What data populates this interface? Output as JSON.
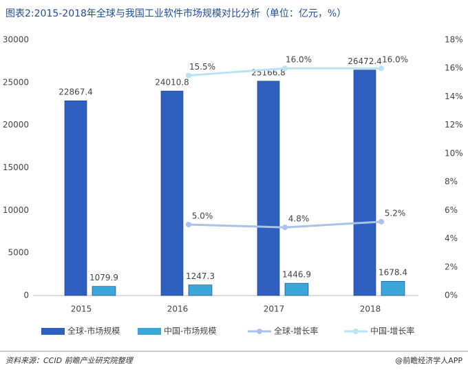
{
  "chart_data": {
    "type": "bar",
    "title": "图表2:2015-2018年全球与我国工业软件市场规模对比分析（单位：亿元，%）",
    "categories": [
      "2015",
      "2016",
      "2017",
      "2018"
    ],
    "series": [
      {
        "name": "全球-市场规模",
        "type": "bar",
        "color": "#2f5fbf",
        "values": [
          22867.4,
          24010.8,
          25166.8,
          26472.4
        ]
      },
      {
        "name": "中国-市场规模",
        "type": "bar",
        "color": "#3ba6d8",
        "values": [
          1079.9,
          1247.3,
          1446.9,
          1678.4
        ]
      },
      {
        "name": "全球-增长率",
        "type": "line",
        "axis": "y2",
        "color": "#a8c3ea",
        "values": [
          null,
          5.0,
          4.8,
          5.2
        ],
        "value_labels": [
          null,
          "5.0%",
          "4.8%",
          "5.2%"
        ]
      },
      {
        "name": "中国-增长率",
        "type": "line",
        "axis": "y2",
        "color": "#b9e2f6",
        "values": [
          null,
          15.5,
          16.0,
          16.0
        ],
        "value_labels": [
          null,
          "15.5%",
          "16.0%",
          "16.0%"
        ]
      }
    ],
    "ylim": [
      0,
      30000
    ],
    "yticks": [
      0,
      5000,
      10000,
      15000,
      20000,
      25000,
      30000
    ],
    "y2lim": [
      0,
      18
    ],
    "y2ticks": [
      {
        "value": 0,
        "label": "0%"
      },
      {
        "value": 2,
        "label": "2%"
      },
      {
        "value": 4,
        "label": "4%"
      },
      {
        "value": 6,
        "label": "6%"
      },
      {
        "value": 8,
        "label": "8%"
      },
      {
        "value": 10,
        "label": "10%"
      },
      {
        "value": 12,
        "label": "12%"
      },
      {
        "value": 14,
        "label": "14%"
      },
      {
        "value": 16,
        "label": "16%"
      },
      {
        "value": 18,
        "label": "18%"
      }
    ],
    "grid": false,
    "legend": "bottom",
    "source": "资料来源：CCID 前瞻产业研究院整理",
    "brand": "@前瞻经济学人APP"
  }
}
